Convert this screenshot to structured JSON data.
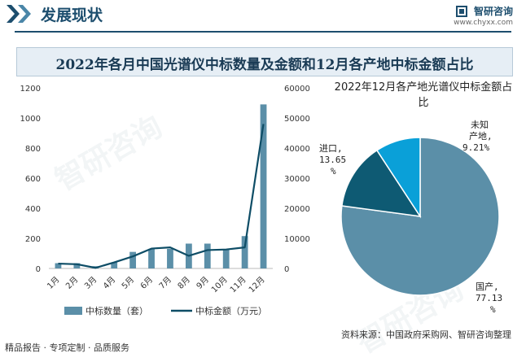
{
  "header": {
    "title": "发展现状",
    "logo_name": "智研咨询",
    "logo_url": "www.chyxx.com"
  },
  "colors": {
    "brand": "#1d4e6e",
    "bar": "#5b8fa8",
    "line": "#0e4d66",
    "pie": [
      "#5b8fa8",
      "#0e5a73",
      "#0aa0d8"
    ]
  },
  "main_title": "2022年各月中国光谱仪中标数量及金额和12月各产地中标金额占比",
  "watermark": "智研咨询",
  "chart_data": [
    {
      "type": "bar",
      "categories": [
        "1月",
        "2月",
        "3月",
        "4月",
        "5月",
        "6月",
        "7月",
        "8月",
        "9月",
        "10月",
        "11月",
        "12月"
      ],
      "series": [
        {
          "name": "中标数量（套）",
          "type": "bar",
          "axis": "left",
          "values": [
            35,
            35,
            15,
            40,
            110,
            130,
            130,
            165,
            165,
            125,
            215,
            1090
          ]
        },
        {
          "name": "中标金额（万元）",
          "type": "line",
          "axis": "right",
          "values": [
            1600,
            1400,
            200,
            2000,
            4000,
            6600,
            7000,
            4200,
            6100,
            6300,
            7000,
            48000
          ]
        }
      ],
      "ylim_left": [
        0,
        1200
      ],
      "yticks_left": [
        0,
        200,
        400,
        600,
        800,
        1000,
        1200
      ],
      "ylim_right": [
        0,
        60000
      ],
      "yticks_right": [
        0,
        10000,
        20000,
        30000,
        40000,
        50000,
        60000
      ],
      "legend": "bottom"
    },
    {
      "type": "pie",
      "title": "2022年12月各产地光谱仪中标金额占比",
      "labels": [
        "国产",
        "进口",
        "未知产地"
      ],
      "values": [
        77.13,
        13.65,
        9.21
      ]
    }
  ],
  "pie_labels": {
    "domestic": [
      "国产,",
      "77.13",
      "%"
    ],
    "import": [
      "进口,",
      "13.65",
      "%"
    ],
    "unknown": [
      "未知",
      "产地,",
      "9.21%"
    ]
  },
  "footer": {
    "left": "精品报告 · 专项定制 · 品质服务",
    "source": "资料来源：中国政府采购网、智研咨询整理"
  }
}
